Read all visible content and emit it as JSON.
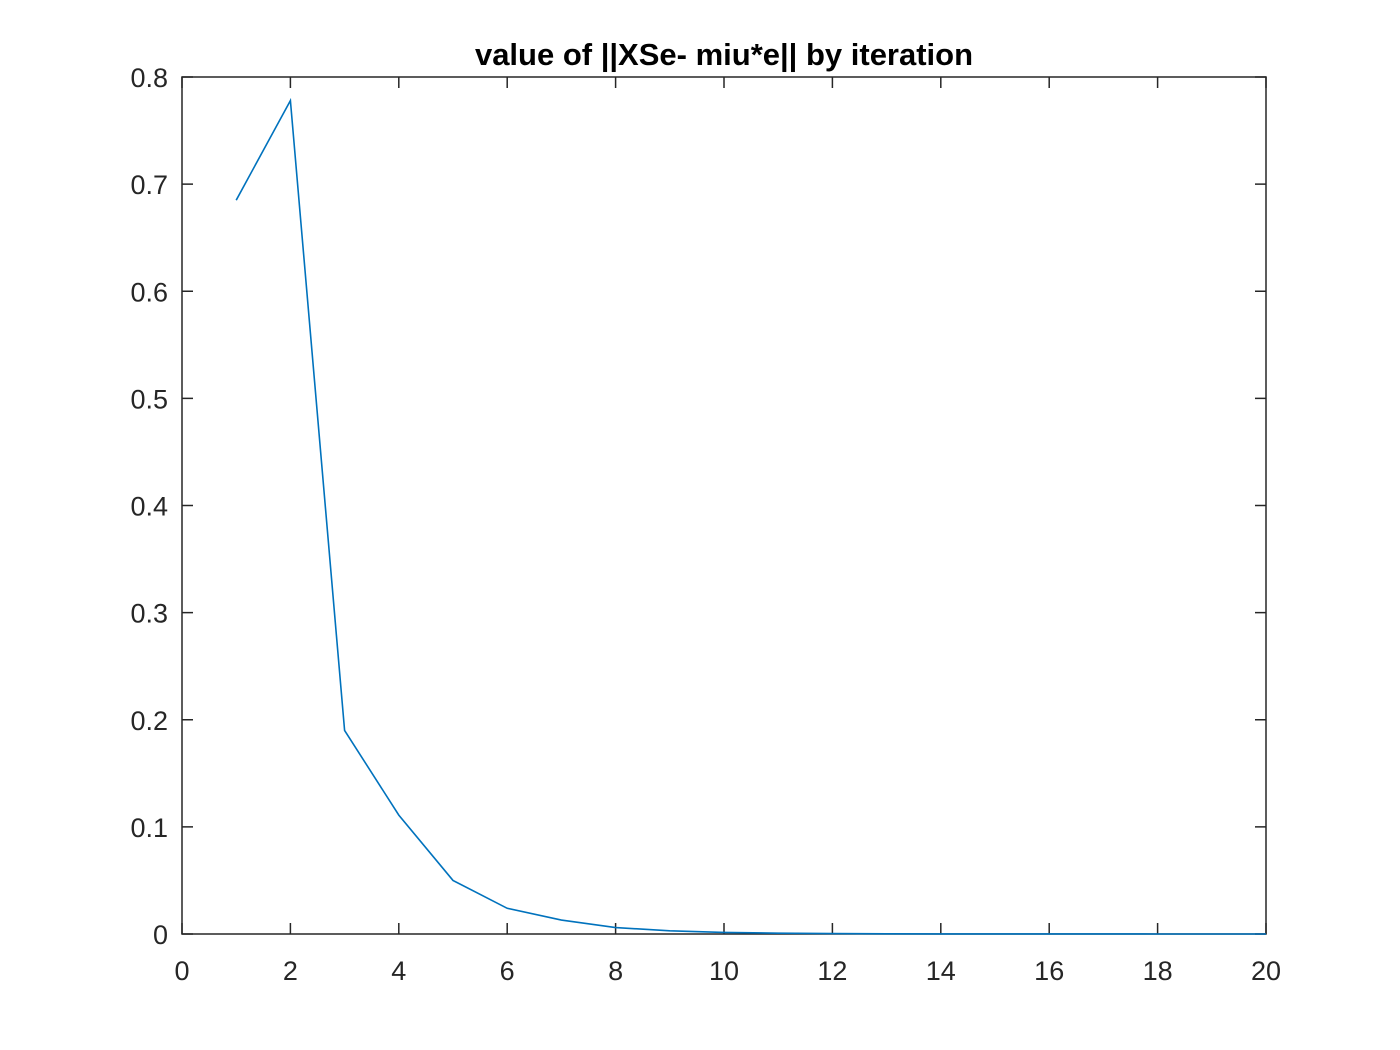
{
  "chart_data": {
    "type": "line",
    "title": "value of ||XSe- miu*e|| by iteration",
    "xlabel": "",
    "ylabel": "",
    "xlim": [
      0,
      20
    ],
    "ylim": [
      0,
      0.8
    ],
    "xticks": [
      0,
      2,
      4,
      6,
      8,
      10,
      12,
      14,
      16,
      18,
      20
    ],
    "yticks": [
      0,
      0.1,
      0.2,
      0.3,
      0.4,
      0.5,
      0.6,
      0.7,
      0.8
    ],
    "xtick_labels": [
      "0",
      "2",
      "4",
      "6",
      "8",
      "10",
      "12",
      "14",
      "16",
      "18",
      "20"
    ],
    "ytick_labels": [
      "0",
      "0.1",
      "0.2",
      "0.3",
      "0.4",
      "0.5",
      "0.6",
      "0.7",
      "0.8"
    ],
    "grid": false,
    "colors": {
      "line": "#0072BD",
      "axes": "#262626",
      "background": "#ffffff"
    },
    "series": [
      {
        "x": [
          1,
          2,
          3,
          4,
          5,
          6,
          7,
          8,
          9,
          10,
          11,
          12,
          13,
          14,
          15,
          16,
          17,
          18,
          19,
          20
        ],
        "values": [
          0.685,
          0.778,
          0.19,
          0.111,
          0.05,
          0.024,
          0.013,
          0.006,
          0.003,
          0.0015,
          0.0008,
          0.0004,
          0.0002,
          0.0001,
          5e-05,
          3e-05,
          2e-05,
          1e-05,
          5e-06,
          3e-06
        ]
      }
    ]
  }
}
